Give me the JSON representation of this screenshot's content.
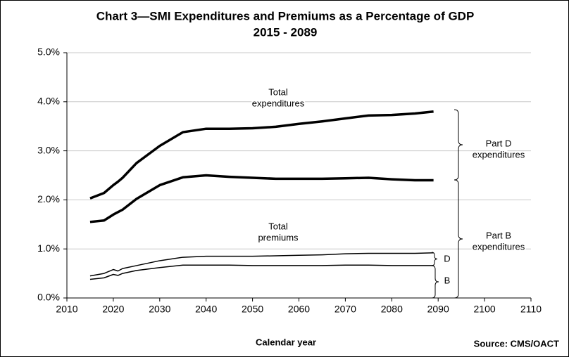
{
  "chart_data": {
    "type": "line",
    "title": "Chart 3—SMI Expenditures and Premiums as a Percentage of GDP",
    "subtitle": "2015 - 2089",
    "x_label": "Calendar year",
    "source": "Source: CMS/OACT",
    "x": [
      2015,
      2018,
      2020,
      2021,
      2022,
      2025,
      2030,
      2035,
      2040,
      2045,
      2050,
      2055,
      2060,
      2065,
      2070,
      2075,
      2080,
      2085,
      2089
    ],
    "series": [
      {
        "color": "#000000",
        "width": "thick",
        "values": [
          2.03,
          2.14,
          2.3,
          2.37,
          2.45,
          2.75,
          3.1,
          3.38,
          3.45,
          3.45,
          3.46,
          3.49,
          3.55,
          3.6,
          3.66,
          3.72,
          3.73,
          3.76,
          3.8
        ]
      },
      {
        "color": "#000000",
        "width": "thick",
        "values": [
          1.55,
          1.58,
          1.7,
          1.75,
          1.8,
          2.02,
          2.3,
          2.46,
          2.5,
          2.47,
          2.45,
          2.43,
          2.43,
          2.43,
          2.44,
          2.45,
          2.42,
          2.4,
          2.4
        ]
      },
      {
        "color": "#000000",
        "width": "thin",
        "values": [
          0.45,
          0.5,
          0.58,
          0.55,
          0.6,
          0.66,
          0.76,
          0.83,
          0.85,
          0.85,
          0.85,
          0.86,
          0.87,
          0.88,
          0.9,
          0.91,
          0.91,
          0.91,
          0.92
        ]
      },
      {
        "color": "#000000",
        "width": "thin",
        "values": [
          0.38,
          0.41,
          0.48,
          0.46,
          0.5,
          0.56,
          0.62,
          0.67,
          0.67,
          0.67,
          0.66,
          0.66,
          0.66,
          0.66,
          0.67,
          0.67,
          0.66,
          0.66,
          0.66
        ]
      }
    ],
    "xlim": [
      2010,
      2110
    ],
    "xticks": [
      2010,
      2020,
      2030,
      2040,
      2050,
      2060,
      2070,
      2080,
      2090,
      2100,
      2110
    ],
    "ylim": [
      0,
      5
    ],
    "yticks": [
      {
        "value": 0,
        "label": "0.0%"
      },
      {
        "value": 1,
        "label": "1.0%"
      },
      {
        "value": 2,
        "label": "2.0%"
      },
      {
        "value": 3,
        "label": "3.0%"
      },
      {
        "value": 4,
        "label": "4.0%"
      },
      {
        "value": 5,
        "label": "5.0%"
      }
    ],
    "grid": true,
    "annotations": [
      {
        "lines": [
          "Total",
          "expenditures"
        ]
      },
      {
        "lines": [
          "Total",
          "premiums"
        ]
      },
      {
        "lines": [
          "Part D",
          "expenditures"
        ]
      },
      {
        "lines": [
          "Part B",
          "expenditures"
        ]
      },
      {
        "lines": [
          "D"
        ]
      },
      {
        "lines": [
          "B"
        ]
      }
    ]
  }
}
